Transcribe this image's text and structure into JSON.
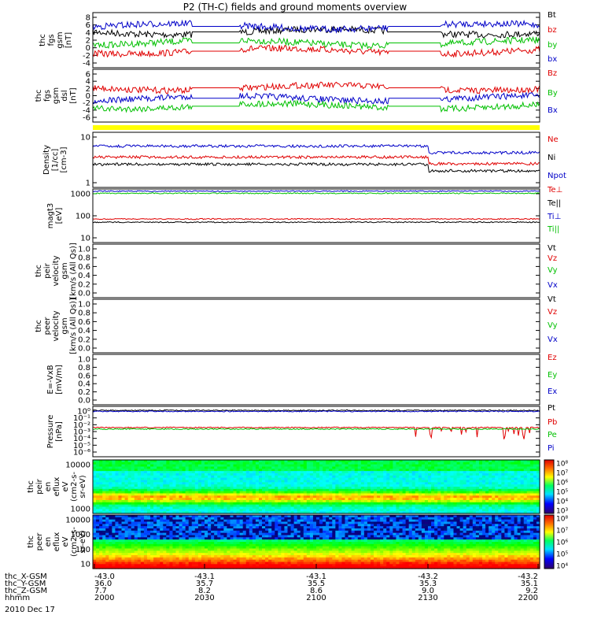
{
  "title": "P2 (TH-C) fields and ground moments overview",
  "colors": {
    "black": "#000000",
    "red": "#e00000",
    "green": "#00c000",
    "blue": "#0000c8",
    "yellow": "#ffff00"
  },
  "chart_data": [
    {
      "type": "line",
      "panel": "fgs",
      "ylabel_lines": [
        "thc",
        "fgs",
        "gsm",
        "[nT]"
      ],
      "yticks": [
        "8",
        "6",
        "4",
        "2",
        "0",
        "-2",
        "-4"
      ],
      "ylim": [
        -4,
        8
      ],
      "series": [
        {
          "name": "Bt",
          "color": "#000000",
          "level": 4.5,
          "amp": 0.8
        },
        {
          "name": "bz",
          "color": "#e00000",
          "level": -1.5,
          "amp": 1.2
        },
        {
          "name": "by",
          "color": "#00c000",
          "level": 0.2,
          "amp": 1.0
        },
        {
          "name": "bx",
          "color": "#0000c8",
          "level": 3.0,
          "amp": 1.0
        }
      ]
    },
    {
      "type": "line",
      "panel": "fgs-dsl",
      "ylabel_lines": [
        "thc",
        "fgs",
        "gsm",
        "dsl",
        "[nT]"
      ],
      "yticks": [
        "6",
        "4",
        "2",
        "0",
        "-2",
        "-4",
        "-6"
      ],
      "ylim": [
        -6,
        6
      ],
      "series": [
        {
          "name": "Bz",
          "color": "#e00000",
          "level": 1.0,
          "amp": 2.5
        },
        {
          "name": "By",
          "color": "#00c000",
          "level": 0.5,
          "amp": 1.5
        },
        {
          "name": "Bx",
          "color": "#0000c8",
          "level": -0.5,
          "amp": 1.5
        }
      ]
    },
    {
      "type": "line",
      "panel": "density",
      "ylabel_lines": [
        "Density",
        "[1/cc]",
        "[cm-3]"
      ],
      "yticks": [
        "10",
        "1"
      ],
      "scale": "log",
      "series": [
        {
          "name": "Ne",
          "color": "#e00000"
        },
        {
          "name": "Ni",
          "color": "#000000"
        },
        {
          "name": "Npot",
          "color": "#0000c8"
        }
      ]
    },
    {
      "type": "line",
      "panel": "temperature",
      "ylabel_lines": [
        "magt3",
        "[eV]"
      ],
      "yticks": [
        "1000",
        "100",
        "10"
      ],
      "scale": "log",
      "series": [
        {
          "name": "Te⊥",
          "color": "#e00000"
        },
        {
          "name": "Te||",
          "color": "#000000"
        },
        {
          "name": "Ti⊥",
          "color": "#0000c8"
        },
        {
          "name": "Ti||",
          "color": "#00c000"
        }
      ]
    },
    {
      "type": "line",
      "panel": "peir-velocity",
      "ylabel_lines": [
        "thc",
        "peir",
        "velocity",
        "gsm",
        "[km/s (All Qs)]"
      ],
      "yticks": [
        "1.0",
        "0.8",
        "0.6",
        "0.4",
        "0.2",
        "0.0"
      ],
      "ylim": [
        0,
        1
      ],
      "series": [
        {
          "name": "Vt",
          "color": "#000000"
        },
        {
          "name": "Vz",
          "color": "#e00000"
        },
        {
          "name": "Vy",
          "color": "#00c000"
        },
        {
          "name": "Vx",
          "color": "#0000c8"
        }
      ]
    },
    {
      "type": "line",
      "panel": "peer-velocity",
      "ylabel_lines": [
        "thc",
        "peer",
        "velocity",
        "gsm",
        "[km/s (All Qs)]"
      ],
      "yticks": [
        "1.0",
        "0.8",
        "0.6",
        "0.4",
        "0.2",
        "0.0"
      ],
      "ylim": [
        0,
        1
      ],
      "series": [
        {
          "name": "Vt",
          "color": "#000000"
        },
        {
          "name": "Vz",
          "color": "#e00000"
        },
        {
          "name": "Vy",
          "color": "#00c000"
        },
        {
          "name": "Vx",
          "color": "#0000c8"
        }
      ]
    },
    {
      "type": "line",
      "panel": "efield",
      "ylabel_lines": [
        "E=-VxB",
        "[mV/m]"
      ],
      "yticks": [
        "1.0",
        "0.8",
        "0.6",
        "0.4",
        "0.2",
        "0.0"
      ],
      "ylim": [
        0,
        1
      ],
      "series": [
        {
          "name": "Ez",
          "color": "#e00000"
        },
        {
          "name": "Ey",
          "color": "#00c000"
        },
        {
          "name": "Ex",
          "color": "#0000c8"
        }
      ]
    },
    {
      "type": "line",
      "panel": "pressure",
      "ylabel_lines": [
        "Pressure",
        "[nPa]"
      ],
      "yticks": [
        "10⁰",
        "10⁻¹",
        "10⁻²",
        "10⁻³",
        "10⁻⁴",
        "10⁻⁵",
        "10⁻⁶"
      ],
      "scale": "log",
      "series": [
        {
          "name": "Pt",
          "color": "#000000"
        },
        {
          "name": "Pb",
          "color": "#e00000"
        },
        {
          "name": "Pe",
          "color": "#00c000"
        },
        {
          "name": "Pi",
          "color": "#0000c8"
        }
      ]
    },
    {
      "type": "heatmap",
      "panel": "peir-spec",
      "ylabel_lines": [
        "thc",
        "peir",
        "en",
        "eflux",
        "eV",
        "(cm2-s-",
        "sr-eV)"
      ],
      "yticks": [
        "10000",
        "1000"
      ],
      "colorbar_ticks": [
        "10⁸",
        "10⁷",
        "10⁶",
        "10⁵",
        "10⁴",
        "10³"
      ]
    },
    {
      "type": "heatmap",
      "panel": "peer-spec",
      "ylabel_lines": [
        "thc",
        "peer",
        "en",
        "eflux",
        "eV",
        "(cm2-s-",
        "sr-eV)"
      ],
      "yticks": [
        "10000",
        "1000",
        "100",
        "10"
      ],
      "colorbar_ticks": [
        "10⁸",
        "10⁷",
        "10⁶",
        "10⁵",
        "10⁴"
      ]
    }
  ],
  "xaxis": {
    "rows": [
      {
        "label": "thc_X-GSM",
        "values": [
          "-43.0",
          "-43.1",
          "-43.1",
          "-43.2",
          "-43.2"
        ]
      },
      {
        "label": "thc_Y-GSM",
        "values": [
          "36.0",
          "35.7",
          "35.5",
          "35.3",
          "35.1"
        ]
      },
      {
        "label": "thc_Z-GSM",
        "values": [
          "7.7",
          "8.2",
          "8.6",
          "9.0",
          "9.2"
        ]
      },
      {
        "label": "hhmm",
        "values": [
          "2000",
          "2030",
          "2100",
          "2130",
          "2200"
        ]
      }
    ],
    "date": "2010 Dec 17"
  }
}
